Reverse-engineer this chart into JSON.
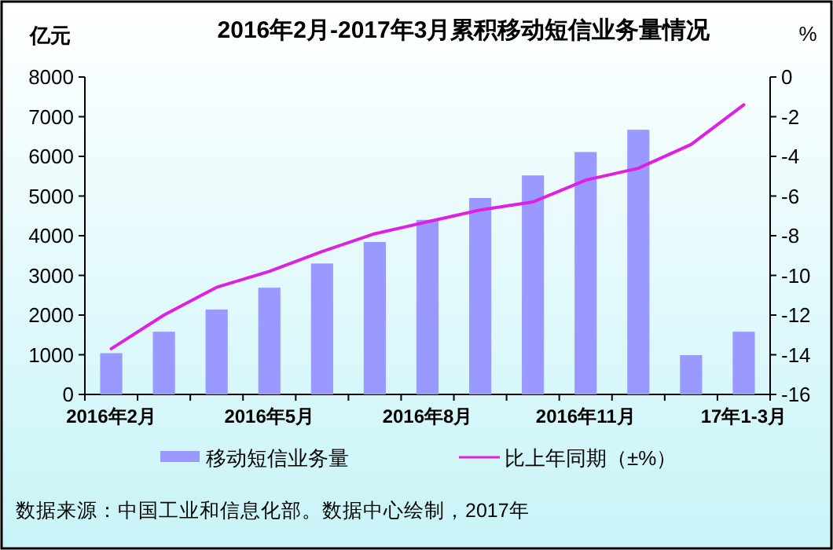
{
  "chart_data": {
    "type": "bar",
    "title": "2016年2月-2017年3月累积移动短信业务量情况",
    "categories": [
      "2016年2月",
      null,
      null,
      "2016年5月",
      null,
      null,
      "2016年8月",
      null,
      null,
      "2016年11月",
      null,
      null,
      "17年1-3月"
    ],
    "series": [
      {
        "name": "移动短信业务量",
        "color": "#9999ff",
        "values": [
          1040,
          1580,
          2140,
          2690,
          3300,
          3840,
          4400,
          4950,
          5520,
          6110,
          6670,
          990,
          1580
        ]
      },
      {
        "name": "比上年同期（±%）",
        "type": "line",
        "axis": "y2",
        "color": "#e020e0",
        "values": [
          -13.7,
          -12.0,
          -10.6,
          -9.8,
          -8.8,
          -7.9,
          -7.3,
          -6.7,
          -6.3,
          -5.2,
          -4.6,
          -3.4,
          -1.4
        ]
      }
    ],
    "ylabel": "亿元",
    "y2label": "%",
    "ylim": [
      0,
      8000
    ],
    "yticks": [
      0,
      1000,
      2000,
      3000,
      4000,
      5000,
      6000,
      7000,
      8000
    ],
    "y2lim": [
      -16,
      0
    ],
    "y2ticks": [
      -16,
      -14,
      -12,
      -10,
      -8,
      -6,
      -4,
      -2,
      0
    ],
    "legend": "bottom",
    "annotations": [
      "数据来源：中国工业和信息化部。数据中心绘制，2017年"
    ]
  }
}
